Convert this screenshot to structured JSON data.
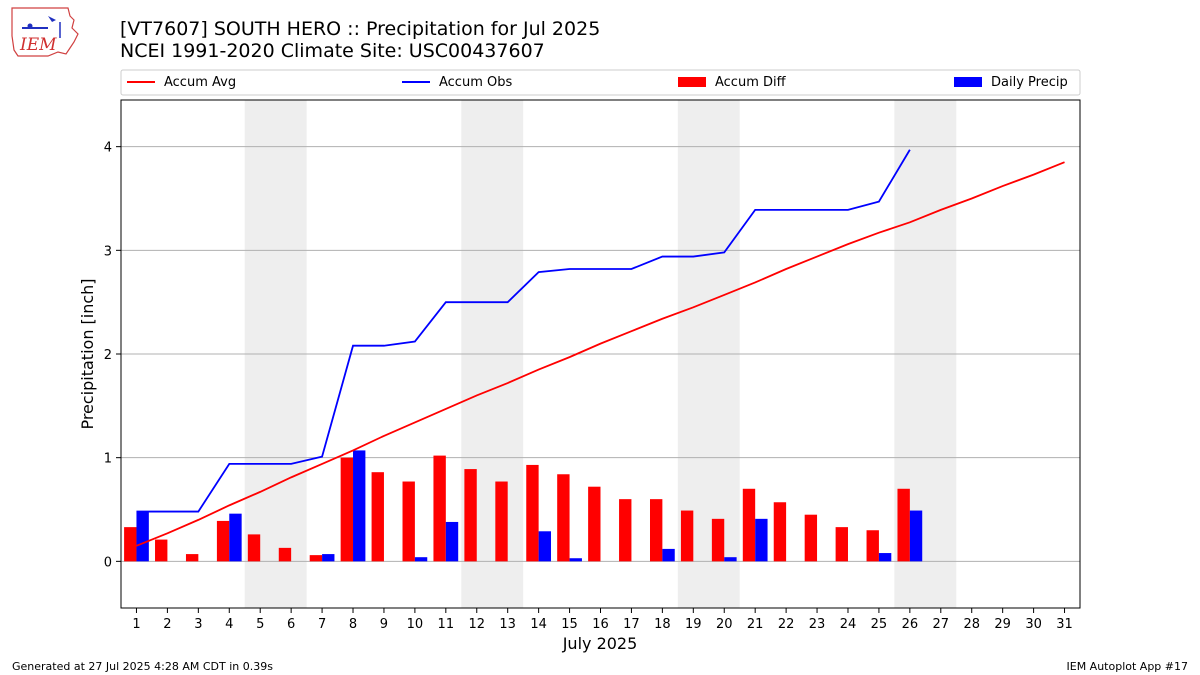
{
  "title": "[VT7607] SOUTH HERO :: Precipitation for Jul 2025",
  "subtitle": "NCEI 1991-2020 Climate Site: USC00437607",
  "logo_text": "IEM",
  "footer_left": "Generated at 27 Jul 2025 4:28 AM CDT in 0.39s",
  "footer_right": "IEM Autoplot App #17",
  "colors": {
    "avg": "#ff0000",
    "obs": "#0000ff",
    "diff": "#ff0000",
    "daily": "#0000ff",
    "weekend": "#eeeeee",
    "grid": "#b0b0b0"
  },
  "chart_data": {
    "type": "bar",
    "xlabel": "July 2025",
    "ylabel": "Precipitation [inch]",
    "xlim": [
      0.5,
      31.5
    ],
    "ylim": [
      -0.45,
      4.45
    ],
    "yticks": [
      0,
      1,
      2,
      3,
      4
    ],
    "grid": "horizontal",
    "legend_placement": "top",
    "weekend_bands": [
      [
        4.5,
        6.5
      ],
      [
        11.5,
        13.5
      ],
      [
        18.5,
        20.5
      ],
      [
        25.5,
        27.5
      ]
    ],
    "days": [
      1,
      2,
      3,
      4,
      5,
      6,
      7,
      8,
      9,
      10,
      11,
      12,
      13,
      14,
      15,
      16,
      17,
      18,
      19,
      20,
      21,
      22,
      23,
      24,
      25,
      26,
      27,
      28,
      29,
      30,
      31
    ],
    "series": [
      {
        "name": "Accum Avg",
        "kind": "line",
        "values": [
          0.15,
          0.27,
          0.4,
          0.54,
          0.67,
          0.81,
          0.94,
          1.07,
          1.21,
          1.34,
          1.47,
          1.6,
          1.72,
          1.85,
          1.97,
          2.1,
          2.22,
          2.34,
          2.45,
          2.57,
          2.69,
          2.82,
          2.94,
          3.06,
          3.17,
          3.27,
          3.39,
          3.5,
          3.62,
          3.73,
          3.85
        ]
      },
      {
        "name": "Accum Obs",
        "kind": "line",
        "values": [
          0.48,
          0.48,
          0.48,
          0.94,
          0.94,
          0.94,
          1.01,
          2.08,
          2.08,
          2.12,
          2.5,
          2.5,
          2.5,
          2.79,
          2.82,
          2.82,
          2.82,
          2.94,
          2.94,
          2.98,
          3.39,
          3.39,
          3.39,
          3.39,
          3.47,
          3.97
        ]
      },
      {
        "name": "Accum Diff",
        "kind": "bar",
        "values": [
          0.33,
          0.21,
          0.07,
          0.39,
          0.26,
          0.13,
          0.06,
          1.0,
          0.86,
          0.77,
          1.02,
          0.89,
          0.77,
          0.93,
          0.84,
          0.72,
          0.6,
          0.6,
          0.49,
          0.41,
          0.7,
          0.57,
          0.45,
          0.33,
          0.3,
          0.7
        ]
      },
      {
        "name": "Daily Precip",
        "kind": "bar",
        "values": [
          0.48,
          0,
          0,
          0.46,
          0,
          0,
          0.07,
          1.07,
          0,
          0.04,
          0.38,
          0,
          0,
          0.29,
          0.03,
          0,
          0,
          0.12,
          0,
          0.04,
          0.41,
          0,
          0,
          0,
          0.08,
          0.49
        ]
      }
    ]
  }
}
